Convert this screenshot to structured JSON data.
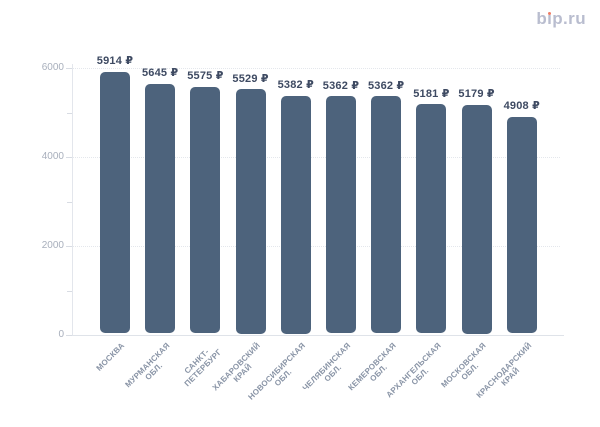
{
  "header": {
    "logo_text": "bip.ru",
    "logo_color": "#b9bdcf",
    "logo_dot_color": "#ee7d66"
  },
  "chart_data": {
    "type": "bar",
    "categories": [
      "МОСКВА",
      "МУРМАНСКАЯ ОБЛ.",
      "САНКТ-ПЕТЕРБУРГ",
      "ХАБАРОВСКИЙ КРАЙ",
      "НОВОСИБИРСКАЯ ОБЛ.",
      "ЧЕЛЯБИНСКАЯ ОБЛ.",
      "КЕМЕРОВСКАЯ ОБЛ.",
      "АРХАНГЕЛЬСКАЯ ОБЛ.",
      "МОСКОВСКАЯ ОБЛ.",
      "КРАСНОДАРСКИЙ КРАЙ"
    ],
    "category_label_lines": [
      [
        "МОСКВА"
      ],
      [
        "МУРМАНСКАЯ",
        "ОБЛ."
      ],
      [
        "САНКТ-",
        "ПЕТЕРБУРГ"
      ],
      [
        "ХАБАРОВСКИЙ",
        "КРАЙ"
      ],
      [
        "НОВОСИБИРСКАЯ",
        "ОБЛ."
      ],
      [
        "ЧЕЛЯБИНСКАЯ",
        "ОБЛ."
      ],
      [
        "КЕМЕРОВСКАЯ",
        "ОБЛ."
      ],
      [
        "АРХАНГЕЛЬСКАЯ",
        "ОБЛ."
      ],
      [
        "МОСКОВСКАЯ",
        "ОБЛ."
      ],
      [
        "КРАСНОДАРСКИЙ",
        "КРАЙ"
      ]
    ],
    "values": [
      5914,
      5645,
      5575,
      5529,
      5382,
      5362,
      5362,
      5181,
      5179,
      4908
    ],
    "value_labels": [
      "5914 ₽",
      "5645 ₽",
      "5575 ₽",
      "5529 ₽",
      "5382 ₽",
      "5362 ₽",
      "5362 ₽",
      "5181 ₽",
      "5179 ₽",
      "4908 ₽"
    ],
    "value_suffix": " ₽",
    "ylim": [
      0,
      6000
    ],
    "yticks": [
      0,
      2000,
      4000,
      6000
    ],
    "ytick_labels": [
      "0",
      "2000",
      "4000",
      "6000"
    ],
    "minor_yticks": [
      1000,
      3000,
      5000
    ],
    "grid": "horizontal dotted gridlines at major ticks",
    "legend": "none",
    "bar_color": "#4d637c",
    "value_label_color": "#3e4a62",
    "xtick_label_color": "#8994a6",
    "ytick_label_color": "#a8afbc"
  }
}
